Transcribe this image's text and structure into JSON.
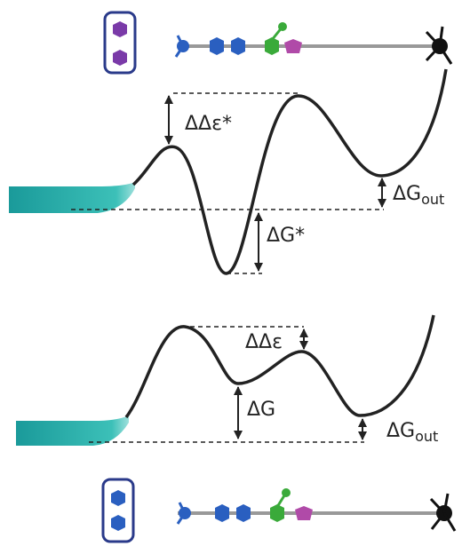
{
  "top_panel": {
    "barrier_label": "ΔΔε*",
    "well_label": "ΔG*",
    "out_label": {
      "main": "ΔG",
      "sub": "out"
    }
  },
  "bottom_panel": {
    "barrier_label": "ΔΔε",
    "well_label": "ΔG",
    "out_label": {
      "main": "ΔG",
      "sub": "out"
    }
  }
}
